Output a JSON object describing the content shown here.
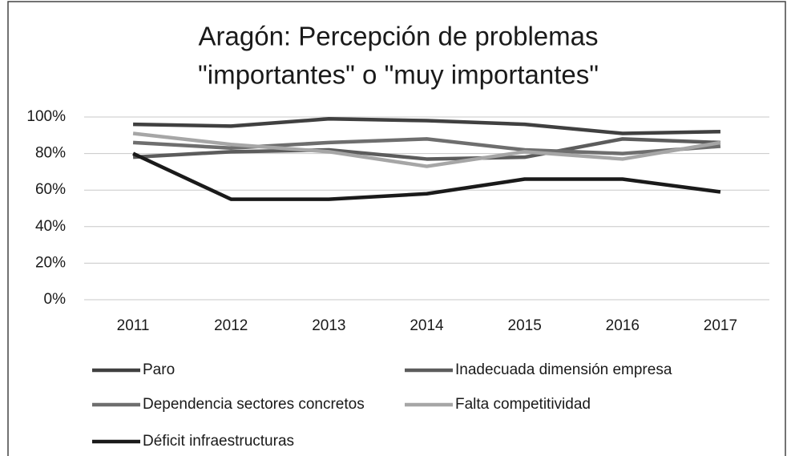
{
  "chart_data": {
    "type": "line",
    "title": [
      "Aragón: Percepción de problemas",
      "\"importantes\" o \"muy importantes\""
    ],
    "categories": [
      "2011",
      "2012",
      "2013",
      "2014",
      "2015",
      "2016",
      "2017"
    ],
    "series": [
      {
        "name": "Paro",
        "color": "#404040",
        "values": [
          96,
          95,
          99,
          98,
          96,
          91,
          92
        ]
      },
      {
        "name": "Inadecuada dimensión empresa",
        "color": "#5c5c5c",
        "values": [
          78,
          81,
          82,
          77,
          78,
          88,
          86
        ]
      },
      {
        "name": "Dependencia sectores concretos",
        "color": "#6e6e6e",
        "values": [
          86,
          83,
          86,
          88,
          82,
          80,
          84
        ]
      },
      {
        "name": "Falta competitividad",
        "color": "#a6a6a6",
        "values": [
          91,
          85,
          81,
          73,
          81,
          77,
          86
        ]
      },
      {
        "name": "Déficit infraestructuras",
        "color": "#1a1a1a",
        "values": [
          80,
          55,
          55,
          58,
          66,
          66,
          59
        ]
      }
    ],
    "ylim": [
      0,
      100
    ],
    "yticks": [
      {
        "value": 0,
        "label": "0%"
      },
      {
        "value": 20,
        "label": "20%"
      },
      {
        "value": 40,
        "label": "40%"
      },
      {
        "value": 60,
        "label": "60%"
      },
      {
        "value": 80,
        "label": "80%"
      },
      {
        "value": 100,
        "label": "100%"
      }
    ],
    "grid": true,
    "legend": "bottom"
  }
}
